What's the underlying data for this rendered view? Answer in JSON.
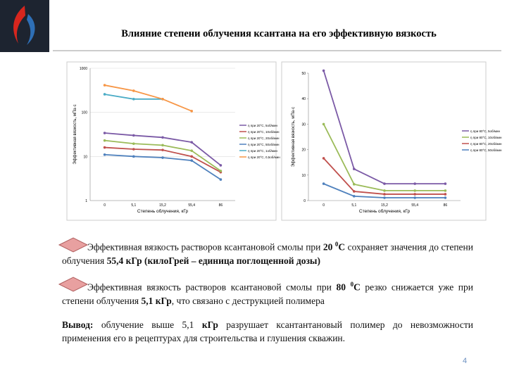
{
  "header": {
    "title": "Влияние степени облучения ксантана на его эффективную вязкость"
  },
  "chart_data": [
    {
      "type": "line",
      "y_label": "Эффективная вязкость, мПа·с",
      "x_label": "Степень облучения, кГр",
      "categories": [
        "0",
        "5,1",
        "15,2",
        "55,4",
        "86"
      ],
      "log_scale": true,
      "grid": true,
      "ylim": [
        1,
        1000
      ],
      "yticks": [
        1,
        10,
        100,
        1000
      ],
      "series": [
        {
          "name": "η при 20°С, 5об/мин",
          "color": "#7b5aa6",
          "values": [
            34,
            30,
            27,
            21,
            6.3
          ]
        },
        {
          "name": "η при 20°С, 10об/мин",
          "color": "#c0504d",
          "values": [
            16,
            14.6,
            14,
            10,
            4.4
          ]
        },
        {
          "name": "η при 20°С, 20об/мин",
          "color": "#9bbb59",
          "values": [
            23,
            19.5,
            18,
            13.5,
            4.7
          ]
        },
        {
          "name": "η при 20°С, 50об/мин",
          "color": "#4f81bd",
          "values": [
            11,
            10,
            9.4,
            8.1,
            3
          ]
        },
        {
          "name": "η при 20°С, 1об/мин",
          "color": "#4bacc6",
          "values": [
            257,
            200,
            200,
            null,
            null
          ]
        },
        {
          "name": "η при 20°С, 0,5об/мин",
          "color": "#f79646",
          "values": [
            413,
            309,
            200,
            107,
            null
          ]
        }
      ]
    },
    {
      "type": "line",
      "y_label": "Эффективная вязкость, мПа·с",
      "x_label": "Степень облучения, кГр",
      "categories": [
        "0",
        "5,1",
        "15,2",
        "55,4",
        "86"
      ],
      "log_scale": false,
      "grid": false,
      "ylim": [
        0,
        50
      ],
      "yticks": [
        0,
        10,
        20,
        30,
        40,
        50
      ],
      "series": [
        {
          "name": "η при 80°С, 5об/мин",
          "color": "#7b5aa6",
          "values": [
            51,
            12.4,
            6.6,
            6.6,
            6.6
          ]
        },
        {
          "name": "η при 80°С, 10об/мин",
          "color": "#9bbb59",
          "values": [
            30,
            6.4,
            3.9,
            3.9,
            3.9
          ]
        },
        {
          "name": "η при 80°С, 20об/мин",
          "color": "#c0504d",
          "values": [
            16.6,
            3.6,
            2.5,
            2.5,
            2.5
          ]
        },
        {
          "name": "η при 80°С, 50об/мин",
          "color": "#4f81bd",
          "values": [
            6.6,
            1.7,
            1.1,
            1.1,
            1.1
          ]
        }
      ]
    }
  ],
  "paragraphs": [
    [
      "Эффективная вязкость растворов ксантановой смолы при ",
      "20 ",
      "0",
      "С",
      " сохраняет значения до степени облучения ",
      "55,4 кГр (килоГрей – единица поглощенной дозы)"
    ],
    [
      "Эффективная вязкость растворов ксантановой смолы при ",
      "80 ",
      "0",
      "С",
      " резко снижается уже при степени облучения ",
      "5,1 кГр",
      ", что связано с деструкцией полимера"
    ],
    [
      "Вывод:",
      " облучение выше 5,1 ",
      "кГр",
      " разрушает ксантантановый полимер до невозможности применения его в рецептурах для строительства и глушения скважин."
    ]
  ],
  "page_number": "4"
}
